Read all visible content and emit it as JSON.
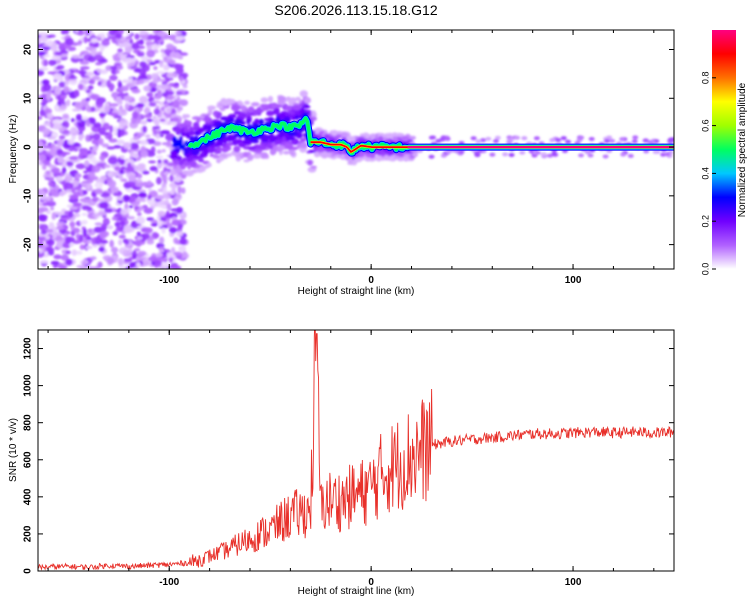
{
  "title": "S206.2026.113.15.18.G12",
  "chart_data": [
    {
      "type": "heatmap",
      "xlabel": "Height of straight line (km)",
      "ylabel": "Frequency (Hz)",
      "xlim": [
        -165,
        150
      ],
      "ylim": [
        -25,
        24
      ],
      "xticks": [
        -100,
        0,
        100
      ],
      "yticks": [
        -20,
        -10,
        0,
        10,
        20
      ],
      "grid": false,
      "colorbar": {
        "label": "Normalized spectral amplitude",
        "range": [
          0,
          1
        ],
        "ticks": [
          "0.0",
          "0.2",
          "0.4",
          "0.6",
          "0.8"
        ],
        "tick_values": [
          0.0,
          0.2,
          0.4,
          0.6,
          0.8
        ],
        "colors": [
          "#ffffff",
          "#b060ff",
          "#7000ff",
          "#0000ff",
          "#00c8ff",
          "#00ff60",
          "#a0ff00",
          "#ffff00",
          "#ff7000",
          "#ff0000",
          "#ff0080"
        ]
      },
      "ridge": {
        "description": "tracked frequency line",
        "x": [
          -90,
          -85,
          -80,
          -75,
          -70,
          -65,
          -60,
          -55,
          -50,
          -45,
          -40,
          -35,
          -32,
          -30,
          -25,
          -20,
          -15,
          -12,
          -10,
          -8,
          -5,
          0,
          5,
          10,
          15,
          20,
          50,
          100,
          150
        ],
        "y": [
          0.5,
          1.0,
          2.0,
          3.0,
          4.0,
          3.5,
          3.0,
          3.5,
          4.0,
          4.5,
          4.0,
          4.5,
          6.0,
          1.0,
          1.0,
          0.5,
          0.5,
          0.0,
          -1.0,
          -0.5,
          0.3,
          0.0,
          0.0,
          0.0,
          0.0,
          0.0,
          0.0,
          0.0,
          0.0
        ]
      }
    },
    {
      "type": "line",
      "xlabel": "Height of straight line (km)",
      "ylabel": "SNR (10 * v/v)",
      "xlim": [
        -165,
        150
      ],
      "ylim": [
        0,
        1300
      ],
      "xticks": [
        -100,
        0,
        100
      ],
      "yticks": [
        0,
        200,
        400,
        600,
        800,
        1000,
        1200
      ],
      "grid": false,
      "color": "#e8302a",
      "series": [
        {
          "name": "",
          "x": [
            -165,
            -150,
            -140,
            -130,
            -120,
            -110,
            -100,
            -95,
            -90,
            -85,
            -80,
            -75,
            -70,
            -65,
            -60,
            -55,
            -50,
            -45,
            -40,
            -35,
            -30,
            -27,
            -25,
            -23,
            -20,
            -15,
            -10,
            -5,
            0,
            5,
            10,
            15,
            20,
            25,
            30,
            40,
            50,
            60,
            70,
            80,
            90,
            100,
            110,
            120,
            130,
            140,
            150
          ],
          "y": [
            20,
            25,
            20,
            30,
            25,
            30,
            35,
            40,
            45,
            60,
            80,
            100,
            120,
            150,
            170,
            200,
            220,
            260,
            300,
            310,
            330,
            1280,
            330,
            370,
            380,
            380,
            400,
            420,
            450,
            520,
            560,
            590,
            620,
            650,
            680,
            700,
            710,
            720,
            730,
            740,
            740,
            745,
            750,
            745,
            750,
            745,
            750
          ]
        }
      ]
    }
  ]
}
